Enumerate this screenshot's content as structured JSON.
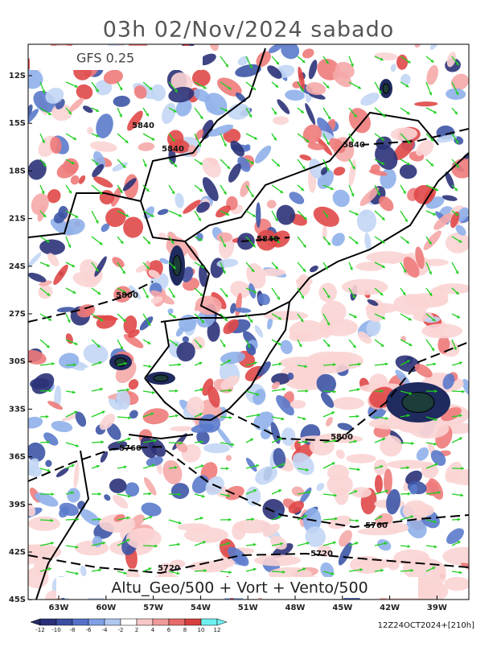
{
  "header": {
    "title": "03h 02/Nov/2024 sabado",
    "model": "GFS 0.25"
  },
  "map": {
    "lat_labels": [
      "12S",
      "15S",
      "18S",
      "21S",
      "24S",
      "27S",
      "30S",
      "33S",
      "36S",
      "39S",
      "42S",
      "45S"
    ],
    "lon_labels": [
      "63W",
      "60W",
      "57W",
      "54W",
      "51W",
      "48W",
      "45W",
      "42W",
      "39W"
    ],
    "contour_labels": [
      "5840",
      "5840",
      "5840",
      "5840",
      "5800",
      "5800",
      "5760",
      "5760",
      "5720",
      "5720"
    ],
    "caption": "Altu_Geo/500 + Vort + Vento/500"
  },
  "colorbar": {
    "labels": [
      "-12",
      "-10",
      "-8",
      "-6",
      "-4",
      "-2",
      "2",
      "4",
      "6",
      "8",
      "10",
      "12"
    ]
  },
  "footer": {
    "run": "12Z24OCT2024+[210h]"
  }
}
